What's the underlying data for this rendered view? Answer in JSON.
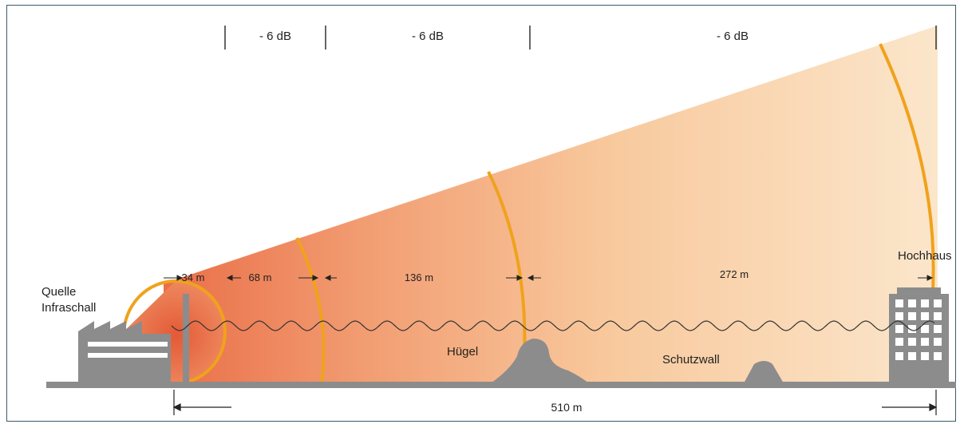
{
  "diagram": {
    "attenuation_labels": [
      "- 6 dB",
      "- 6 dB",
      "- 6 dB"
    ],
    "distances": {
      "d1": "34 m",
      "d2": "68 m",
      "d3": "136 m",
      "d4": "272 m",
      "total": "510 m"
    },
    "source_label": [
      "Quelle",
      "Infraschall"
    ],
    "hill_label": "Hügel",
    "wall_label": "Schutzwall",
    "building_label": "Hochhaus"
  },
  "colors": {
    "cone_near": "#e8704a",
    "cone_far": "#fbe4c6",
    "wavefront": "#f0a21c",
    "structure": "#8c8c8c",
    "ground": "#8c8c8c",
    "border": "#3a5a6a"
  }
}
